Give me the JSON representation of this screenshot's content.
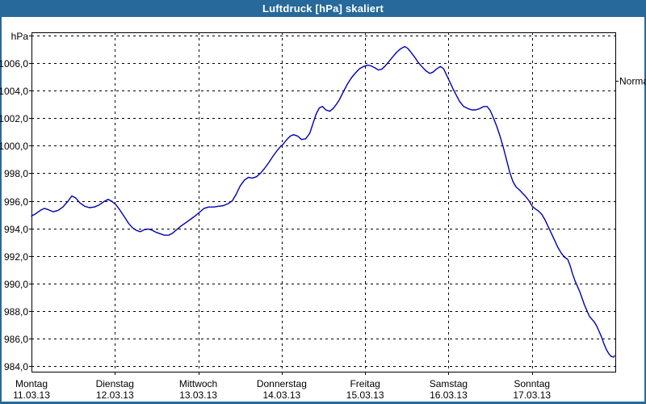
{
  "window": {
    "title": "Luftdruck [hPa] skaliert",
    "titlebar_color": "#26699a"
  },
  "chart_data": {
    "type": "line",
    "title": "Luftdruck [hPa] skaliert",
    "grid": "dashed",
    "legend": "none",
    "y_axis": {
      "unit_label": "hPa",
      "ylim": [
        983.6,
        1008.2
      ],
      "gridline_values": [
        1008,
        1006,
        1004,
        1002,
        1000,
        998,
        996,
        994,
        992,
        990,
        988,
        986,
        984
      ],
      "tick_labels": [
        "1006,0",
        "1004,0",
        "1002,0",
        "1000,0",
        "998,0",
        "996,0",
        "994,0",
        "992,0",
        "990,0",
        "988,0",
        "986,0",
        "984,0"
      ]
    },
    "x_axis": {
      "range_days": [
        0,
        7
      ],
      "days": [
        {
          "name": "Montag",
          "date": "11.03.13"
        },
        {
          "name": "Dienstag",
          "date": "12.03.13"
        },
        {
          "name": "Mittwoch",
          "date": "13.03.13"
        },
        {
          "name": "Donnerstag",
          "date": "14.03.13"
        },
        {
          "name": "Freitag",
          "date": "15.03.13"
        },
        {
          "name": "Samstag",
          "date": "16.03.13"
        },
        {
          "name": "Sonntag",
          "date": "17.03.13"
        }
      ]
    },
    "annotations": [
      {
        "label": "Normal",
        "value": 1004.7,
        "side": "right"
      }
    ],
    "series": [
      {
        "name": "Luftdruck",
        "color": "#0000b4",
        "points": [
          [
            0.0,
            994.9
          ],
          [
            0.048,
            995.05
          ],
          [
            0.106,
            995.3
          ],
          [
            0.155,
            995.45
          ],
          [
            0.203,
            995.35
          ],
          [
            0.261,
            995.2
          ],
          [
            0.319,
            995.3
          ],
          [
            0.377,
            995.55
          ],
          [
            0.435,
            995.95
          ],
          [
            0.483,
            996.35
          ],
          [
            0.532,
            996.2
          ],
          [
            0.58,
            995.85
          ],
          [
            0.638,
            995.6
          ],
          [
            0.696,
            995.5
          ],
          [
            0.754,
            995.55
          ],
          [
            0.812,
            995.7
          ],
          [
            0.87,
            995.95
          ],
          [
            0.919,
            996.1
          ],
          [
            0.967,
            995.95
          ],
          [
            1.015,
            995.7
          ],
          [
            1.063,
            995.3
          ],
          [
            1.112,
            994.85
          ],
          [
            1.16,
            994.4
          ],
          [
            1.209,
            994.05
          ],
          [
            1.257,
            993.85
          ],
          [
            1.305,
            993.75
          ],
          [
            1.354,
            993.9
          ],
          [
            1.402,
            993.95
          ],
          [
            1.45,
            993.85
          ],
          [
            1.499,
            993.7
          ],
          [
            1.547,
            993.6
          ],
          [
            1.595,
            993.5
          ],
          [
            1.644,
            993.5
          ],
          [
            1.692,
            993.65
          ],
          [
            1.74,
            993.9
          ],
          [
            1.789,
            994.15
          ],
          [
            1.847,
            994.4
          ],
          [
            1.905,
            994.65
          ],
          [
            1.963,
            994.9
          ],
          [
            2.011,
            995.15
          ],
          [
            2.069,
            995.45
          ],
          [
            2.127,
            995.55
          ],
          [
            2.185,
            995.55
          ],
          [
            2.243,
            995.6
          ],
          [
            2.301,
            995.65
          ],
          [
            2.359,
            995.8
          ],
          [
            2.408,
            996.0
          ],
          [
            2.456,
            996.5
          ],
          [
            2.504,
            997.1
          ],
          [
            2.553,
            997.5
          ],
          [
            2.601,
            997.7
          ],
          [
            2.649,
            997.65
          ],
          [
            2.698,
            997.75
          ],
          [
            2.746,
            998.0
          ],
          [
            2.794,
            998.35
          ],
          [
            2.843,
            998.75
          ],
          [
            2.891,
            999.2
          ],
          [
            2.939,
            999.6
          ],
          [
            2.988,
            999.95
          ],
          [
            3.017,
            1000.1
          ],
          [
            3.055,
            1000.4
          ],
          [
            3.104,
            1000.7
          ],
          [
            3.142,
            1000.8
          ],
          [
            3.191,
            1000.7
          ],
          [
            3.239,
            1000.45
          ],
          [
            3.287,
            1000.5
          ],
          [
            3.336,
            1000.9
          ],
          [
            3.374,
            1001.6
          ],
          [
            3.413,
            1002.3
          ],
          [
            3.452,
            1002.75
          ],
          [
            3.49,
            1002.85
          ],
          [
            3.529,
            1002.6
          ],
          [
            3.577,
            1002.5
          ],
          [
            3.616,
            1002.7
          ],
          [
            3.655,
            1003.0
          ],
          [
            3.693,
            1003.35
          ],
          [
            3.742,
            1003.95
          ],
          [
            3.79,
            1004.5
          ],
          [
            3.838,
            1004.95
          ],
          [
            3.887,
            1005.3
          ],
          [
            3.935,
            1005.6
          ],
          [
            3.983,
            1005.75
          ],
          [
            4.032,
            1005.85
          ],
          [
            4.07,
            1005.8
          ],
          [
            4.119,
            1005.65
          ],
          [
            4.157,
            1005.5
          ],
          [
            4.196,
            1005.55
          ],
          [
            4.235,
            1005.75
          ],
          [
            4.283,
            1006.1
          ],
          [
            4.331,
            1006.45
          ],
          [
            4.38,
            1006.8
          ],
          [
            4.428,
            1007.05
          ],
          [
            4.476,
            1007.2
          ],
          [
            4.515,
            1007.05
          ],
          [
            4.554,
            1006.75
          ],
          [
            4.592,
            1006.45
          ],
          [
            4.631,
            1006.1
          ],
          [
            4.68,
            1005.75
          ],
          [
            4.728,
            1005.45
          ],
          [
            4.776,
            1005.25
          ],
          [
            4.815,
            1005.35
          ],
          [
            4.863,
            1005.6
          ],
          [
            4.902,
            1005.75
          ],
          [
            4.941,
            1005.6
          ],
          [
            4.979,
            1005.1
          ],
          [
            5.018,
            1004.6
          ],
          [
            5.057,
            1004.1
          ],
          [
            5.095,
            1003.65
          ],
          [
            5.134,
            1003.2
          ],
          [
            5.182,
            1002.85
          ],
          [
            5.231,
            1002.7
          ],
          [
            5.279,
            1002.6
          ],
          [
            5.327,
            1002.6
          ],
          [
            5.376,
            1002.7
          ],
          [
            5.424,
            1002.85
          ],
          [
            5.463,
            1002.85
          ],
          [
            5.501,
            1002.55
          ],
          [
            5.54,
            1002.0
          ],
          [
            5.579,
            1001.4
          ],
          [
            5.617,
            1000.7
          ],
          [
            5.656,
            999.9
          ],
          [
            5.695,
            999.0
          ],
          [
            5.733,
            998.1
          ],
          [
            5.772,
            997.4
          ],
          [
            5.811,
            997.0
          ],
          [
            5.849,
            996.8
          ],
          [
            5.888,
            996.55
          ],
          [
            5.927,
            996.3
          ],
          [
            5.965,
            996.0
          ],
          [
            6.004,
            995.6
          ],
          [
            6.043,
            995.4
          ],
          [
            6.081,
            995.25
          ],
          [
            6.12,
            995.0
          ],
          [
            6.159,
            994.6
          ],
          [
            6.197,
            994.1
          ],
          [
            6.236,
            993.6
          ],
          [
            6.275,
            993.1
          ],
          [
            6.313,
            992.6
          ],
          [
            6.352,
            992.2
          ],
          [
            6.391,
            991.9
          ],
          [
            6.429,
            991.75
          ],
          [
            6.458,
            991.3
          ],
          [
            6.487,
            990.7
          ],
          [
            6.516,
            990.2
          ],
          [
            6.545,
            989.8
          ],
          [
            6.574,
            989.4
          ],
          [
            6.603,
            988.9
          ],
          [
            6.632,
            988.4
          ],
          [
            6.661,
            988.0
          ],
          [
            6.69,
            987.6
          ],
          [
            6.719,
            987.4
          ],
          [
            6.748,
            987.2
          ],
          [
            6.777,
            986.9
          ],
          [
            6.806,
            986.5
          ],
          [
            6.835,
            986.1
          ],
          [
            6.864,
            985.6
          ],
          [
            6.893,
            985.2
          ],
          [
            6.922,
            984.9
          ],
          [
            6.951,
            984.7
          ],
          [
            6.98,
            984.65
          ],
          [
            6.99,
            984.75
          ]
        ]
      }
    ]
  }
}
